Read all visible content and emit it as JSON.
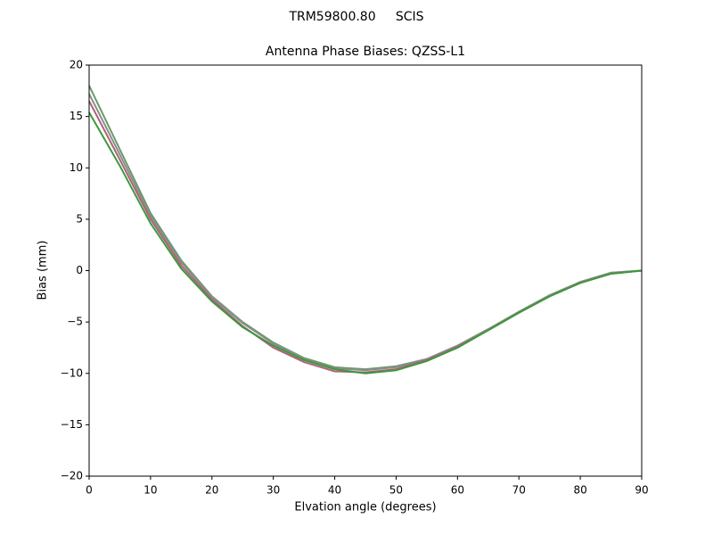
{
  "chart_data": {
    "type": "line",
    "suptitle": "TRM59800.80     SCIS",
    "title": "Antenna Phase Biases: QZSS-L1",
    "x_label": "Elvation angle (degrees)",
    "y_label": "Bias (mm)",
    "x": [
      0,
      5,
      10,
      15,
      20,
      25,
      30,
      35,
      40,
      45,
      50,
      55,
      60,
      65,
      70,
      75,
      80,
      85,
      90
    ],
    "series": [
      {
        "color": "#6a9a6a",
        "values": [
          18.0,
          11.8,
          5.6,
          1.0,
          -2.5,
          -5.0,
          -7.0,
          -8.5,
          -9.4,
          -9.6,
          -9.3,
          -8.6,
          -7.3,
          -5.7,
          -4.0,
          -2.4,
          -1.1,
          -0.2,
          0
        ]
      },
      {
        "color": "#8c8c8c",
        "values": [
          17.2,
          11.3,
          5.3,
          0.8,
          -2.6,
          -5.1,
          -7.1,
          -8.6,
          -9.5,
          -9.7,
          -9.4,
          -8.6,
          -7.3,
          -5.7,
          -4.0,
          -2.4,
          -1.1,
          -0.2,
          0
        ]
      },
      {
        "color": "#b0607a",
        "values": [
          16.5,
          10.8,
          5.0,
          0.5,
          -2.8,
          -5.4,
          -7.5,
          -8.9,
          -9.8,
          -9.9,
          -9.6,
          -8.7,
          -7.4,
          -5.8,
          -4.1,
          -2.5,
          -1.2,
          -0.3,
          0
        ]
      },
      {
        "color": "#3a9a3a",
        "values": [
          15.4,
          10.2,
          4.6,
          0.2,
          -3.0,
          -5.5,
          -7.3,
          -8.7,
          -9.6,
          -10.0,
          -9.7,
          -8.8,
          -7.5,
          -5.8,
          -4.1,
          -2.5,
          -1.2,
          -0.3,
          0
        ]
      }
    ],
    "xlim": [
      0,
      90
    ],
    "ylim": [
      -20,
      20
    ],
    "xticks": [
      0,
      10,
      20,
      30,
      40,
      50,
      60,
      70,
      80,
      90
    ],
    "yticks": [
      {
        "value": -20,
        "label": "−20"
      },
      {
        "value": -15,
        "label": "−15"
      },
      {
        "value": -10,
        "label": "−10"
      },
      {
        "value": -5,
        "label": "−5"
      },
      0,
      5,
      10,
      15,
      20
    ],
    "grid": false
  }
}
